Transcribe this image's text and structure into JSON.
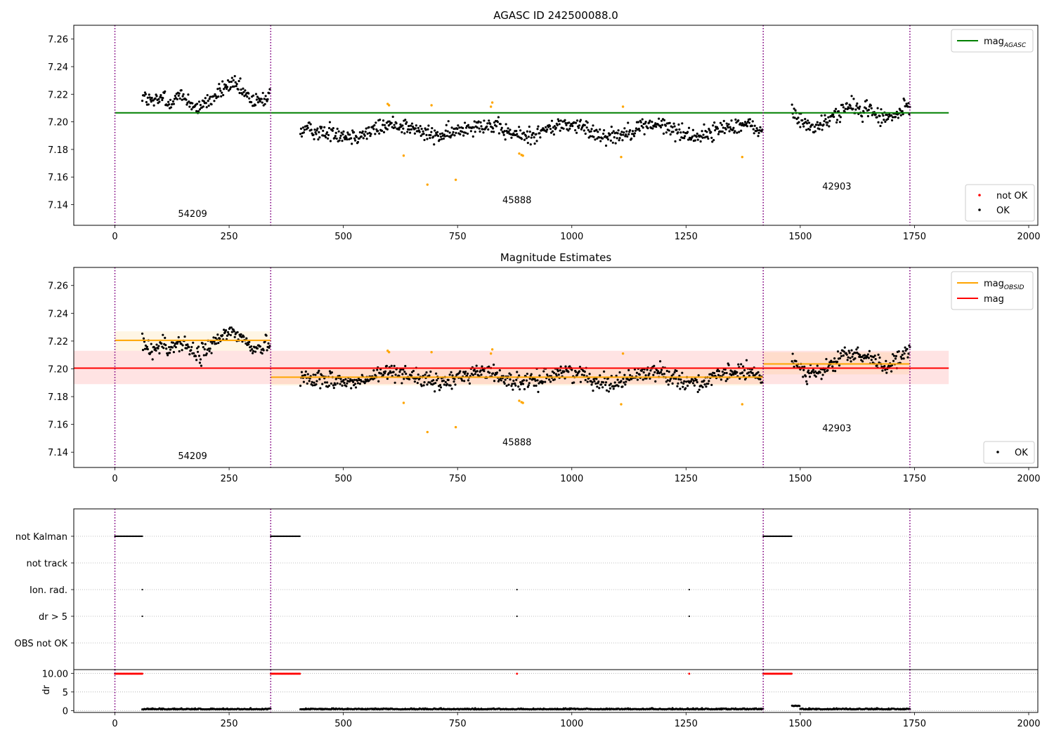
{
  "chart_data": [
    {
      "type": "scatter",
      "title": "AGASC ID 242500088.0",
      "xlim": [
        -90,
        2020
      ],
      "ylim": [
        7.125,
        7.27
      ],
      "xticks": [
        0,
        250,
        500,
        750,
        1000,
        1250,
        1500,
        1750,
        2000
      ],
      "yticks": [
        7.14,
        7.16,
        7.18,
        7.2,
        7.22,
        7.24,
        7.26
      ],
      "obsid_boundaries": [
        0,
        341,
        1419,
        1740
      ],
      "obsid_labels": [
        {
          "text": "54209",
          "x": 170,
          "y": 7.131
        },
        {
          "text": "45888",
          "x": 880,
          "y": 7.141
        },
        {
          "text": "42903",
          "x": 1580,
          "y": 7.151
        }
      ],
      "lines": [
        {
          "name": "mag_AGASC",
          "color": "#008000",
          "y": 7.2065,
          "x": [
            0,
            1825
          ]
        }
      ],
      "legend_lines": {
        "position": "upper right",
        "entries": [
          {
            "label": "mag",
            "sub": "AGASC",
            "color": "#008000"
          }
        ]
      },
      "legend_points": {
        "position": "lower right",
        "entries": [
          {
            "label": "not OK",
            "color": "#ff0000"
          },
          {
            "label": "OK",
            "color": "#000000"
          }
        ]
      }
    },
    {
      "type": "scatter",
      "title": "Magnitude Estimates",
      "xlim": [
        -90,
        2020
      ],
      "ylim": [
        7.129,
        7.273
      ],
      "xticks": [
        0,
        250,
        500,
        750,
        1000,
        1250,
        1500,
        1750,
        2000
      ],
      "yticks": [
        7.14,
        7.16,
        7.18,
        7.2,
        7.22,
        7.24,
        7.26
      ],
      "obsid_boundaries": [
        0,
        341,
        1419,
        1740
      ],
      "obsid_labels": [
        {
          "text": "54209",
          "x": 170,
          "y": 7.135
        },
        {
          "text": "45888",
          "x": 880,
          "y": 7.145
        },
        {
          "text": "42903",
          "x": 1580,
          "y": 7.155
        }
      ],
      "bands": [
        {
          "color": "#ff0000",
          "opacity": 0.11,
          "y0": 7.189,
          "y1": 7.213,
          "x0": -90,
          "x1": 1825
        },
        {
          "color": "#ffa500",
          "opacity": 0.1,
          "y0": 7.213,
          "y1": 7.227,
          "x0": 0,
          "x1": 341
        },
        {
          "color": "#ffa500",
          "opacity": 0.1,
          "y0": 7.188,
          "y1": 7.2,
          "x0": 341,
          "x1": 1419
        },
        {
          "color": "#ffa500",
          "opacity": 0.1,
          "y0": 7.196,
          "y1": 7.212,
          "x0": 1419,
          "x1": 1740
        }
      ],
      "lines": [
        {
          "name": "mag",
          "color": "#ff0000",
          "y": 7.2005,
          "x": [
            -90,
            1825
          ]
        },
        {
          "name": "mag_OBSID",
          "color": "#ffa500",
          "y": 7.2205,
          "x": [
            0,
            341
          ]
        },
        {
          "name": "mag_OBSID",
          "color": "#ffa500",
          "y": 7.194,
          "x": [
            341,
            1419
          ]
        },
        {
          "name": "mag_OBSID",
          "color": "#ffa500",
          "y": 7.2035,
          "x": [
            1419,
            1740
          ]
        }
      ],
      "legend_lines": {
        "position": "upper right",
        "entries": [
          {
            "label": "mag",
            "sub": "OBSID",
            "color": "#ffa500"
          },
          {
            "label": "mag",
            "sub": "",
            "color": "#ff0000"
          }
        ]
      },
      "legend_points": {
        "position": "lower right",
        "entries": [
          {
            "label": "OK",
            "color": "#000000"
          }
        ]
      }
    },
    {
      "type": "scatter",
      "title": "",
      "xlim": [
        -90,
        2020
      ],
      "flag_labels": [
        "not Kalman",
        "not track",
        "Ion. rad.",
        "dr > 5",
        "OBS not OK"
      ],
      "obsid_boundaries": [
        0,
        341,
        1419,
        1740
      ],
      "flag_ranges": [
        {
          "flag": "not Kalman",
          "segments": [
            [
              0,
              60
            ],
            [
              341,
              406
            ],
            [
              1419,
              1482
            ]
          ]
        },
        {
          "flag": "Ion. rad.",
          "points": [
            60,
            880,
            1257
          ]
        },
        {
          "flag": "dr > 5",
          "points": [
            60,
            880,
            1257
          ]
        }
      ]
    },
    {
      "type": "scatter",
      "title": "",
      "ylabel": "dr",
      "xlim": [
        -90,
        2020
      ],
      "ylim": [
        -0.5,
        11
      ],
      "xticks": [
        0,
        250,
        500,
        750,
        1000,
        1250,
        1500,
        1750,
        2000
      ],
      "yticks": [
        0,
        5,
        10
      ],
      "obsid_boundaries": [
        0,
        341,
        1419,
        1740
      ],
      "high_dr_segments": [
        [
          0,
          60
        ],
        [
          341,
          406
        ],
        [
          1419,
          1482
        ]
      ],
      "high_dr_points": [
        880,
        1257
      ],
      "high_dr_value": 9.9,
      "low_dr_segments": [
        [
          60,
          341
        ],
        [
          406,
          1419
        ],
        [
          1482,
          1740
        ]
      ],
      "low_dr_level": 0.3
    }
  ]
}
